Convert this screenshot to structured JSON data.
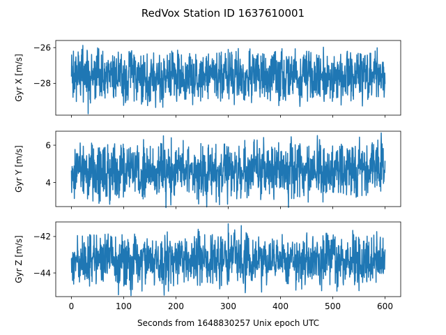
{
  "figure": {
    "title": "RedVox Station ID 1637610001",
    "xlabel": "Seconds from 1648830257 Unix epoch UTC"
  },
  "chart_data": [
    {
      "type": "line",
      "ylabel": "Gyr X [m/s]",
      "xlim": [
        -30,
        630
      ],
      "ylim": [
        -29.78,
        -25.6
      ],
      "xticks": [
        0,
        100,
        200,
        300,
        400,
        500,
        600
      ],
      "yticks": [
        -28,
        -26
      ],
      "series": [
        {
          "color": "#1f77b4",
          "x_range": [
            0,
            600
          ],
          "mean": -27.6,
          "band": [
            -28.6,
            -26.5
          ],
          "extremes": [
            {
              "x": 32,
              "y": -29.7
            },
            {
              "x": 20,
              "y": -26.1
            },
            {
              "x": 60,
              "y": -26.2
            },
            {
              "x": 120,
              "y": -29.0
            },
            {
              "x": 232,
              "y": -29.2
            },
            {
              "x": 300,
              "y": -26.1
            },
            {
              "x": 340,
              "y": -26.2
            },
            {
              "x": 405,
              "y": -28.9
            },
            {
              "x": 450,
              "y": -26.2
            },
            {
              "x": 528,
              "y": -26.2
            },
            {
              "x": 567,
              "y": -28.9
            }
          ]
        }
      ]
    },
    {
      "type": "line",
      "ylabel": "Gyr Y [m/s]",
      "xlim": [
        -30,
        630
      ],
      "ylim": [
        2.71,
        6.75
      ],
      "xticks": [
        0,
        100,
        200,
        300,
        400,
        500,
        600
      ],
      "yticks": [
        4,
        6
      ],
      "series": [
        {
          "color": "#1f77b4",
          "x_range": [
            0,
            600
          ],
          "mean": 4.6,
          "band": [
            3.5,
            5.7
          ],
          "extremes": [
            {
              "x": 176,
              "y": 6.5
            },
            {
              "x": 191,
              "y": 6.4
            },
            {
              "x": 55,
              "y": 3.0
            },
            {
              "x": 138,
              "y": 6.3
            },
            {
              "x": 277,
              "y": 2.95
            },
            {
              "x": 330,
              "y": 5.8
            },
            {
              "x": 453,
              "y": 2.95
            },
            {
              "x": 40,
              "y": 6.0
            },
            {
              "x": 560,
              "y": 5.6
            }
          ]
        }
      ]
    },
    {
      "type": "line",
      "ylabel": "Gyr Z [m/s]",
      "xlim": [
        -30,
        630
      ],
      "ylim": [
        -45.3,
        -41.2
      ],
      "xticks": [
        0,
        100,
        200,
        300,
        400,
        500,
        600
      ],
      "xtick_labels": [
        "0",
        "100",
        "200",
        "300",
        "400",
        "500",
        "600"
      ],
      "yticks": [
        -44,
        -42
      ],
      "series": [
        {
          "color": "#1f77b4",
          "x_range": [
            0,
            600
          ],
          "mean": -43.3,
          "band": [
            -44.3,
            -42.2
          ],
          "extremes": [
            {
              "x": 300,
              "y": -41.3
            },
            {
              "x": 325,
              "y": -41.4
            },
            {
              "x": 90,
              "y": -45.2
            },
            {
              "x": 135,
              "y": -45.0
            },
            {
              "x": 255,
              "y": -41.9
            },
            {
              "x": 508,
              "y": -45.0
            },
            {
              "x": 540,
              "y": -41.9
            },
            {
              "x": 35,
              "y": -41.9
            }
          ]
        }
      ]
    }
  ]
}
